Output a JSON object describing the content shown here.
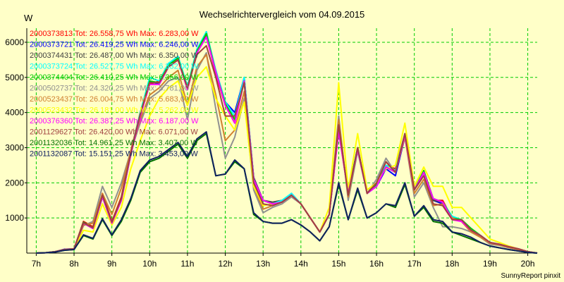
{
  "chart_data": {
    "type": "line",
    "title": "Wechselrichtervergleich vom 04.09.2015",
    "ylabel": "W",
    "xlabel": "",
    "footer": "SunnyReport pinxit",
    "grid": true,
    "ylim": [
      0,
      6400
    ],
    "xlim": [
      6.75,
      20.25
    ],
    "yticks": [
      1000,
      2000,
      3000,
      4000,
      5000,
      6000
    ],
    "ytick_labels": [
      "1000",
      "2000",
      "3000",
      "4000",
      "5000",
      "6000"
    ],
    "xticks": [
      7,
      8,
      9,
      10,
      11,
      12,
      13,
      14,
      15,
      16,
      17,
      18,
      19,
      20
    ],
    "xtick_labels": [
      "7h",
      "8h",
      "9h",
      "10h",
      "11h",
      "12h",
      "13h",
      "14h",
      "15h",
      "16h",
      "17h",
      "18h",
      "19h",
      "20h"
    ],
    "x": [
      7.0,
      7.25,
      7.5,
      7.75,
      8.0,
      8.25,
      8.5,
      8.75,
      9.0,
      9.25,
      9.5,
      9.75,
      10.0,
      10.25,
      10.5,
      10.75,
      11.0,
      11.25,
      11.5,
      11.75,
      12.0,
      12.25,
      12.5,
      12.75,
      13.0,
      13.25,
      13.5,
      13.75,
      14.0,
      14.25,
      14.5,
      14.75,
      15.0,
      15.25,
      15.5,
      15.75,
      16.0,
      16.25,
      16.5,
      16.75,
      17.0,
      17.25,
      17.5,
      17.75,
      18.0,
      18.25,
      18.5,
      18.75,
      19.0,
      19.25,
      19.5,
      19.75,
      20.0,
      20.25
    ],
    "series": [
      {
        "name": "2000373813",
        "label": "2000373813 Tot: 26.558,75 Wh Max: 6.283,00 W",
        "color": "#FF0000",
        "values": [
          0,
          10,
          40,
          100,
          120,
          900,
          750,
          1700,
          900,
          1600,
          2900,
          4000,
          4800,
          4900,
          5400,
          5500,
          4700,
          5700,
          6200,
          5100,
          4200,
          3700,
          4900,
          2100,
          1500,
          1400,
          1500,
          1650,
          1400,
          1000,
          600,
          1100,
          3600,
          1700,
          3000,
          1700,
          2000,
          2500,
          2400,
          3400,
          1800,
          2300,
          1500,
          1500,
          1000,
          900,
          600,
          500,
          300,
          250,
          180,
          120,
          40,
          0
        ]
      },
      {
        "name": "2000373721",
        "label": "2000373721 Tot: 26.419,25 Wh Max: 6.246,00 W",
        "color": "#0000FF",
        "values": [
          0,
          10,
          40,
          110,
          120,
          850,
          700,
          1600,
          850,
          1500,
          2800,
          3900,
          4900,
          4800,
          5300,
          5600,
          4700,
          5800,
          6150,
          5200,
          4300,
          4000,
          5000,
          2150,
          1500,
          1400,
          1450,
          1700,
          1400,
          1000,
          600,
          1100,
          3500,
          1700,
          3000,
          1700,
          1900,
          2400,
          2200,
          3300,
          1800,
          2300,
          1500,
          1400,
          1000,
          950,
          700,
          500,
          300,
          250,
          170,
          110,
          40,
          0
        ]
      },
      {
        "name": "2000374431",
        "label": "2000374431 Tot: 26.487,00 Wh Max: 6.350,00 W",
        "color": "#404040",
        "values": [
          0,
          10,
          40,
          100,
          120,
          880,
          720,
          1650,
          880,
          1550,
          2850,
          3950,
          4850,
          4850,
          5350,
          5550,
          4750,
          5750,
          6300,
          5150,
          4250,
          3800,
          4950,
          2150,
          1500,
          1450,
          1500,
          1650,
          1400,
          1000,
          600,
          1100,
          3600,
          1700,
          3000,
          1700,
          1950,
          2450,
          2300,
          3350,
          1800,
          2300,
          1500,
          1450,
          1000,
          920,
          650,
          500,
          300,
          250,
          180,
          120,
          40,
          0
        ]
      },
      {
        "name": "2000373724",
        "label": "2000373724 Tot: 26.527,75 Wh Max: 6.332,00 W",
        "color": "#00FFFF",
        "values": [
          0,
          10,
          40,
          100,
          120,
          860,
          720,
          1600,
          870,
          1550,
          2850,
          4000,
          5000,
          4900,
          5400,
          5600,
          4750,
          5800,
          6300,
          5200,
          4300,
          3900,
          5000,
          2100,
          1500,
          1400,
          1500,
          1700,
          1400,
          1000,
          600,
          1100,
          3550,
          1700,
          3000,
          1700,
          2000,
          2500,
          2350,
          3400,
          1800,
          2300,
          1550,
          1450,
          1050,
          950,
          700,
          500,
          300,
          250,
          180,
          120,
          40,
          0
        ]
      },
      {
        "name": "2000374404",
        "label": "2000374404 Tot: 26.410,25 Wh Max: 6.356,00 W",
        "color": "#00CC00",
        "values": [
          0,
          10,
          40,
          100,
          120,
          870,
          720,
          1600,
          860,
          1500,
          2800,
          3950,
          4900,
          4850,
          5350,
          5550,
          4700,
          5750,
          6250,
          5150,
          4250,
          3800,
          4900,
          2100,
          1500,
          1400,
          1450,
          1650,
          1400,
          1000,
          600,
          1100,
          3500,
          1700,
          3000,
          1700,
          1950,
          2450,
          2300,
          3350,
          1800,
          2350,
          1550,
          1450,
          1000,
          950,
          700,
          500,
          300,
          250,
          180,
          120,
          40,
          0
        ]
      },
      {
        "name": "2000502737",
        "label": "2000502737 Tot: 24.320,25 Wh Max: 5.781,00 W",
        "color": "#909090",
        "values": [
          0,
          10,
          40,
          100,
          120,
          780,
          900,
          1900,
          1300,
          2000,
          2900,
          3700,
          4400,
          4600,
          4900,
          5000,
          3800,
          5200,
          5700,
          4100,
          2700,
          3300,
          4400,
          1800,
          1150,
          1300,
          1400,
          1600,
          1400,
          1000,
          600,
          1100,
          3900,
          1500,
          2900,
          1700,
          2100,
          2700,
          2300,
          3300,
          1600,
          2000,
          1300,
          750,
          750,
          700,
          600,
          450,
          250,
          220,
          150,
          100,
          30,
          0
        ]
      },
      {
        "name": "2000523437",
        "label": "2000523437 Tot: 26.004,75 Wh Max: 5.683,00 W",
        "color": "#D08030",
        "values": [
          0,
          10,
          40,
          100,
          120,
          800,
          850,
          1700,
          1100,
          1850,
          2900,
          3800,
          4500,
          4700,
          5000,
          5200,
          4200,
          5300,
          5650,
          4500,
          3200,
          3500,
          4600,
          1900,
          1250,
          1350,
          1450,
          1650,
          1400,
          1000,
          600,
          1100,
          3800,
          1600,
          3000,
          1700,
          2000,
          2600,
          2300,
          3300,
          1700,
          2100,
          1350,
          1400,
          1000,
          900,
          600,
          450,
          280,
          230,
          160,
          100,
          30,
          0
        ]
      },
      {
        "name": "2000523432",
        "label": "2000523432 Tot: 26.181,00 Wh Max: 5.262,00 W",
        "color": "#FFFF00",
        "values": [
          0,
          10,
          40,
          100,
          120,
          650,
          600,
          1400,
          800,
          1300,
          2400,
          3200,
          3900,
          4400,
          4700,
          4900,
          4200,
          5000,
          5300,
          4400,
          3900,
          3500,
          4300,
          1900,
          1350,
          1400,
          1450,
          1650,
          1400,
          1000,
          600,
          1300,
          4850,
          1800,
          3400,
          1800,
          2000,
          2400,
          2500,
          3700,
          1900,
          2450,
          1900,
          1900,
          1300,
          1300,
          1000,
          700,
          400,
          300,
          200,
          120,
          40,
          0
        ]
      },
      {
        "name": "2000376360",
        "label": "2000376360 Tot: 26.387,25 Wh Max: 6.187,00 W",
        "color": "#FF00FF",
        "values": [
          0,
          10,
          40,
          100,
          120,
          850,
          700,
          1600,
          850,
          1500,
          2800,
          3900,
          4800,
          4800,
          5300,
          5500,
          4650,
          5700,
          6150,
          5150,
          4200,
          3700,
          4900,
          2100,
          1500,
          1400,
          1450,
          1650,
          1400,
          1000,
          600,
          1100,
          3450,
          1700,
          2950,
          1700,
          1900,
          2450,
          2300,
          3350,
          1800,
          2300,
          1550,
          1450,
          950,
          900,
          650,
          500,
          300,
          250,
          180,
          120,
          40,
          0
        ]
      },
      {
        "name": "2001129627",
        "label": "2001129627 Tot: 26.420,00 Wh Max: 6.071,00 W",
        "color": "#A04040",
        "values": [
          0,
          10,
          40,
          100,
          120,
          860,
          720,
          1650,
          880,
          1550,
          2850,
          3950,
          4850,
          4850,
          5300,
          5500,
          4700,
          5650,
          5900,
          5000,
          3900,
          3900,
          4850,
          2000,
          1400,
          1350,
          1450,
          1650,
          1400,
          1000,
          600,
          1100,
          3650,
          1650,
          3000,
          1700,
          2000,
          2600,
          2300,
          3400,
          1800,
          2200,
          1400,
          1350,
          950,
          950,
          650,
          500,
          300,
          250,
          180,
          120,
          40,
          0
        ]
      },
      {
        "name": "2001132036",
        "label": "2001132036 Tot: 14.961,25 Wh Max: 3.407,00 W",
        "color": "#007000",
        "values": [
          0,
          10,
          30,
          80,
          100,
          500,
          400,
          950,
          500,
          900,
          1500,
          2300,
          2600,
          2700,
          2900,
          3100,
          2700,
          3200,
          3400,
          2200,
          2250,
          2600,
          2400,
          1100,
          900,
          850,
          850,
          950,
          800,
          600,
          350,
          750,
          1950,
          950,
          1800,
          1000,
          1150,
          1400,
          1300,
          1950,
          1050,
          1300,
          900,
          850,
          600,
          500,
          400,
          300,
          200,
          150,
          100,
          60,
          20,
          0
        ]
      },
      {
        "name": "2001132087",
        "label": "2001132087 Tot: 15.151,25 Wh Max: 3.453,00 W",
        "color": "#102060",
        "values": [
          0,
          10,
          30,
          80,
          100,
          520,
          420,
          980,
          520,
          950,
          1550,
          2350,
          2650,
          2750,
          2950,
          3150,
          2750,
          3250,
          3450,
          2200,
          2250,
          2650,
          2400,
          1150,
          900,
          850,
          850,
          950,
          800,
          600,
          350,
          750,
          2000,
          950,
          1850,
          1000,
          1150,
          1400,
          1350,
          2000,
          1050,
          1350,
          950,
          900,
          600,
          550,
          450,
          300,
          200,
          150,
          100,
          60,
          20,
          0
        ]
      }
    ]
  }
}
